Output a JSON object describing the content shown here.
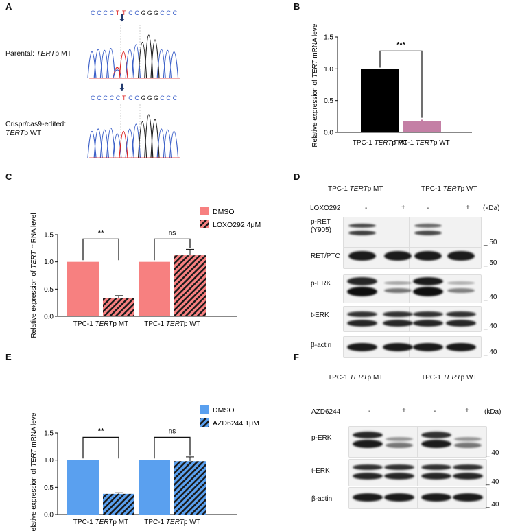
{
  "panels": {
    "A": {
      "label": "A",
      "seq_top": [
        "C",
        "C",
        "C",
        "C",
        "T",
        "T",
        "C",
        "C",
        "G",
        "G",
        "G",
        "C",
        "C",
        "C"
      ],
      "seq_bottom": [
        "C",
        "C",
        "C",
        "C",
        "C",
        "T",
        "C",
        "C",
        "G",
        "G",
        "G",
        "C",
        "C",
        "C"
      ],
      "row1_label_pre": "Parental: ",
      "row1_label_gene": "TERT",
      "row1_label_post": "p MT",
      "row2_label_line1": "Crispr/cas9-edited:",
      "row2_label_gene": "TERT",
      "row2_label_post": "p WT",
      "colors": {
        "C": "#3b5fc8",
        "T": "#d22",
        "G": "#222",
        "A": "#2a2"
      }
    },
    "B": {
      "label": "B"
    },
    "C": {
      "label": "C",
      "legend": [
        "DMSO",
        "LOXO292 4μM"
      ]
    },
    "D": {
      "label": "D",
      "header_mt_pre": "TPC-1 ",
      "header_gene": "TERT",
      "header_mt_post": "p MT",
      "header_wt_post": "p WT",
      "treatment": "LOXO292",
      "minus": "-",
      "plus": "+",
      "kda": "(kDa)",
      "rows": [
        {
          "label": "p-RET\n(Y905)",
          "marker": "50"
        },
        {
          "label": "RET/PTC",
          "marker": "50"
        },
        {
          "label": "p-ERK",
          "marker": "40"
        },
        {
          "label": "t-ERK",
          "marker": "40"
        },
        {
          "label": "β-actin",
          "marker": "40"
        }
      ]
    },
    "E": {
      "label": "E",
      "legend": [
        "DMSO",
        "AZD6244 1μM"
      ]
    },
    "F": {
      "label": "F",
      "treatment": "AZD6244",
      "rows": [
        {
          "label": "p-ERK",
          "marker": "40"
        },
        {
          "label": "t-ERK",
          "marker": "40"
        },
        {
          "label": "β-actin",
          "marker": "40"
        }
      ]
    }
  },
  "chart_data": [
    {
      "id": "B",
      "type": "bar",
      "categories": [
        "TPC-1 TERTp MT",
        "TPC-1 TERTp WT"
      ],
      "category_parts": [
        [
          "TPC-1 ",
          "TERT",
          "p MT"
        ],
        [
          "TPC-1 ",
          "TERT",
          "p WT"
        ]
      ],
      "values": [
        1.0,
        0.18
      ],
      "errors": [
        0,
        0.02
      ],
      "colors": [
        "#000000",
        "#c47fa5"
      ],
      "ylabel_pre": "Relative expression of ",
      "ylabel_gene": "TERT",
      "ylabel_post": " mRNA level",
      "ylim": [
        0,
        1.5
      ],
      "yticks": [
        "0.0",
        "0.5",
        "1.0",
        "1.5"
      ],
      "significance": "***"
    },
    {
      "id": "C",
      "type": "bar",
      "categories": [
        "TPC-1 TERTp MT",
        "TPC-1 TERTp WT"
      ],
      "category_parts": [
        [
          "TPC-1 ",
          "TERT",
          "p MT"
        ],
        [
          "TPC-1 ",
          "TERT",
          "p WT"
        ]
      ],
      "series": [
        {
          "name": "DMSO",
          "values": [
            1.0,
            1.0
          ],
          "errors": [
            0,
            0
          ],
          "color": "#f78080",
          "hatch": false
        },
        {
          "name": "LOXO292 4μM",
          "values": [
            0.33,
            1.12
          ],
          "errors": [
            0.05,
            0.11
          ],
          "color": "#f78080",
          "hatch": true
        }
      ],
      "ylabel_pre": "Relative expression of ",
      "ylabel_gene": "TERT",
      "ylabel_post": " mRNA level",
      "ylim": [
        0,
        1.5
      ],
      "yticks": [
        "0.0",
        "0.5",
        "1.0",
        "1.5"
      ],
      "significance": [
        "**",
        "ns"
      ]
    },
    {
      "id": "E",
      "type": "bar",
      "categories": [
        "TPC-1 TERTp MT",
        "TPC-1 TERTp WT"
      ],
      "category_parts": [
        [
          "TPC-1 ",
          "TERT",
          "p MT"
        ],
        [
          "TPC-1 ",
          "TERT",
          "p WT"
        ]
      ],
      "series": [
        {
          "name": "DMSO",
          "values": [
            1.0,
            1.0
          ],
          "errors": [
            0,
            0
          ],
          "color": "#5aa0ef",
          "hatch": false
        },
        {
          "name": "AZD6244 1μM",
          "values": [
            0.38,
            0.98
          ],
          "errors": [
            0.02,
            0.08
          ],
          "color": "#5aa0ef",
          "hatch": true
        }
      ],
      "ylabel_pre": "Relative expression of ",
      "ylabel_gene": "TERT",
      "ylabel_post": " mRNA level",
      "ylim": [
        0,
        1.5
      ],
      "yticks": [
        "0.0",
        "0.5",
        "1.0",
        "1.5"
      ],
      "significance": [
        "**",
        "ns"
      ]
    }
  ]
}
